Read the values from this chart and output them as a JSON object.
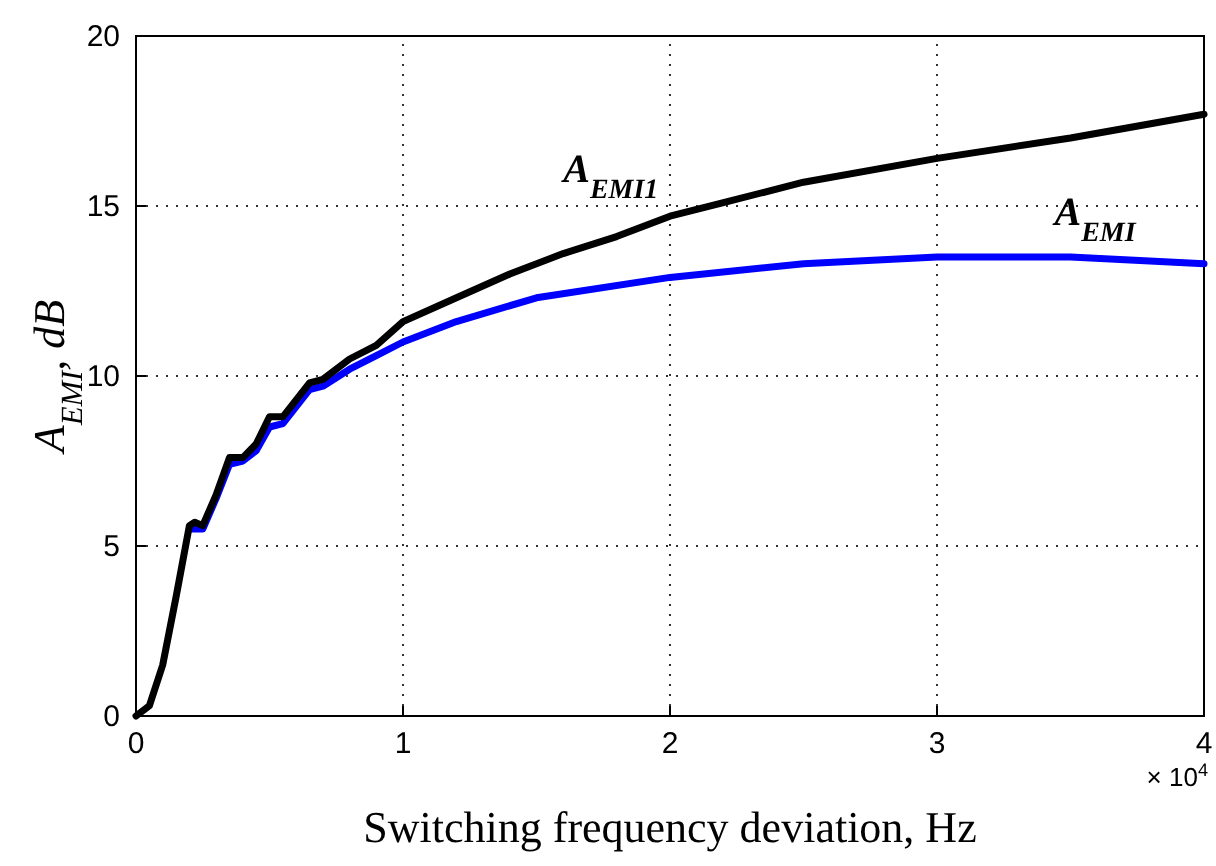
{
  "chart_data": {
    "type": "line",
    "xlabel": "Switching frequency deviation, Hz",
    "ylabel": "A$_{EMI}$, dB",
    "annotations": [
      "× 10$^{4}$"
    ],
    "xlim": [
      0,
      4
    ],
    "xticks": [
      0,
      1,
      2,
      3,
      4
    ],
    "ylim": [
      0,
      20
    ],
    "yticks": [
      0,
      5,
      10,
      15,
      20
    ],
    "grid": true,
    "line_style": "solid",
    "series": [
      {
        "name": "A$_{EMI1}$",
        "color": "#000000",
        "x": [
          0,
          0.05,
          0.1,
          0.15,
          0.2,
          0.22,
          0.25,
          0.3,
          0.35,
          0.4,
          0.45,
          0.5,
          0.55,
          0.6,
          0.65,
          0.7,
          0.8,
          0.9,
          1.0,
          1.2,
          1.4,
          1.6,
          1.8,
          2.0,
          2.2,
          2.5,
          3.0,
          3.5,
          4.0
        ],
        "values": [
          0,
          0.3,
          1.5,
          3.5,
          5.6,
          5.7,
          5.6,
          6.5,
          7.6,
          7.6,
          8.0,
          8.8,
          8.8,
          9.3,
          9.8,
          9.9,
          10.5,
          10.9,
          11.6,
          12.3,
          13.0,
          13.6,
          14.1,
          14.7,
          15.1,
          15.7,
          16.4,
          17.0,
          17.7
        ]
      },
      {
        "name": "A$_{EMI}$",
        "color": "#0000ff",
        "x": [
          0.2,
          0.22,
          0.25,
          0.3,
          0.35,
          0.4,
          0.45,
          0.5,
          0.55,
          0.6,
          0.65,
          0.7,
          0.8,
          0.9,
          1.0,
          1.2,
          1.5,
          2.0,
          2.5,
          3.0,
          3.5,
          4.0
        ],
        "values": [
          5.5,
          5.5,
          5.5,
          6.4,
          7.4,
          7.5,
          7.8,
          8.5,
          8.6,
          9.1,
          9.6,
          9.7,
          10.2,
          10.6,
          11.0,
          11.6,
          12.3,
          12.9,
          13.3,
          13.5,
          13.5,
          13.3
        ]
      }
    ]
  }
}
